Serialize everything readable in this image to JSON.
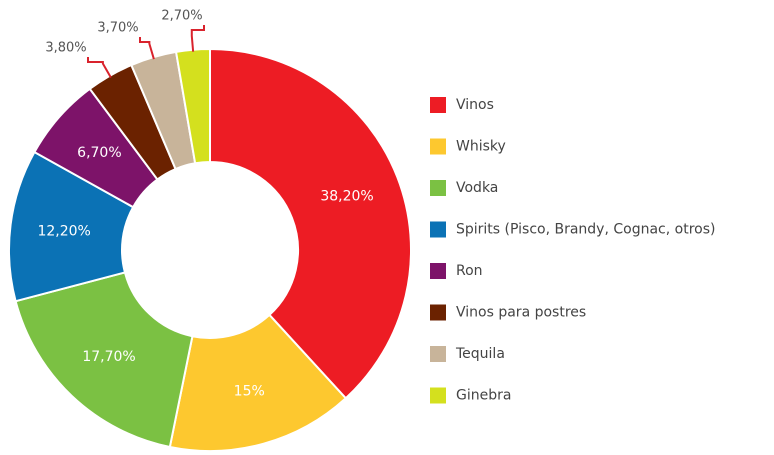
{
  "chart_data": {
    "type": "donut",
    "categories": [
      "Vinos",
      "Whisky",
      "Vodka",
      "Spirits (Pisco, Brandy, Cognac, otros)",
      "Ron",
      "Vinos para postres",
      "Tequila",
      "Ginebra"
    ],
    "values": [
      38.2,
      15,
      17.7,
      12.2,
      6.7,
      3.8,
      3.7,
      2.7
    ],
    "value_labels": [
      "38,20%",
      "15%",
      "17,70%",
      "12,20%",
      "6,70%",
      "3,80%",
      "3,70%",
      "2,70%"
    ],
    "colors": [
      "#ed1c24",
      "#fdc82f",
      "#7bc143",
      "#0b72b5",
      "#7d1369",
      "#6b2200",
      "#c8b49a",
      "#d4e01e"
    ],
    "legend": "right"
  }
}
